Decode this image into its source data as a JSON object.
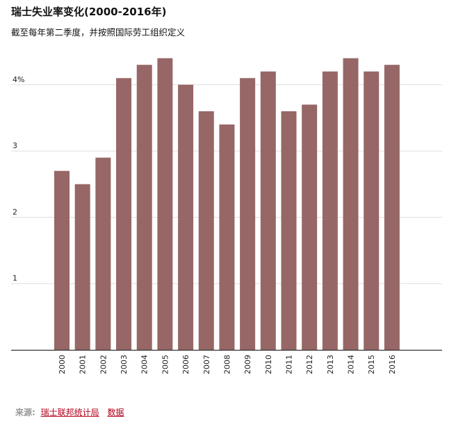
{
  "chart_data": {
    "type": "bar",
    "title": "瑞士失业率变化(2000-2016年)",
    "subtitle": "截至每年第二季度，并按照国际劳工组织定义",
    "categories": [
      "2000",
      "2001",
      "2002",
      "2003",
      "2004",
      "2005",
      "2006",
      "2007",
      "2008",
      "2009",
      "2010",
      "2011",
      "2012",
      "2013",
      "2014",
      "2015",
      "2016"
    ],
    "values": [
      2.7,
      2.5,
      2.9,
      4.1,
      4.3,
      4.4,
      4.0,
      3.6,
      3.4,
      4.1,
      4.2,
      3.6,
      3.7,
      4.2,
      4.4,
      4.2,
      4.3
    ],
    "y_ticks": [
      "1",
      "2",
      "3",
      "4%"
    ],
    "ylim": [
      0,
      4.6
    ],
    "grid": true,
    "bar_color": "#966766",
    "grid_color": "#dddddd",
    "axis_color": "#333333"
  },
  "footer": {
    "source_label": "来源:",
    "source_link": "瑞士联邦统计局",
    "data_link": "数据"
  }
}
